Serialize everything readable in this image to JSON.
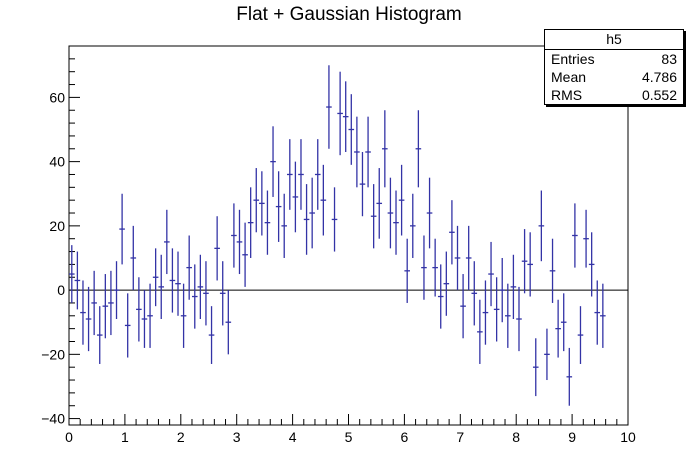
{
  "chart_data": {
    "type": "histogram",
    "title": "Flat + Gaussian Histogram",
    "xlim": [
      0,
      10
    ],
    "ylim": [
      -42,
      76
    ],
    "x_ticks": [
      0,
      1,
      2,
      3,
      4,
      5,
      6,
      7,
      8,
      9,
      10
    ],
    "y_ticks": [
      -40,
      -20,
      0,
      20,
      40,
      60
    ],
    "bin_width": 0.1,
    "values": [
      5,
      3,
      -7,
      -9,
      -4,
      -14,
      -5,
      -4,
      0,
      19,
      -11,
      10,
      -6,
      -9,
      -8,
      4,
      1,
      15,
      3,
      2,
      -8,
      7,
      -2,
      1,
      -1,
      -14,
      13,
      -1,
      -10,
      17,
      15,
      11,
      21,
      28,
      27,
      21,
      40,
      26,
      20,
      36,
      29,
      36,
      22,
      24,
      36,
      28,
      57,
      22,
      55,
      54,
      50,
      43,
      33,
      43,
      23,
      27,
      44,
      24,
      21,
      28,
      6,
      20,
      44,
      7,
      24,
      7,
      -2,
      2,
      18,
      10,
      -5,
      10,
      -1,
      -13,
      -7,
      5,
      -6,
      0,
      -8,
      1,
      -9,
      9,
      8,
      -24,
      20,
      -20,
      6,
      -12,
      -10,
      -27,
      17,
      -14,
      16,
      8,
      -7,
      -8
    ],
    "errors": [
      9,
      9,
      10,
      10,
      10,
      9,
      10,
      10,
      9,
      11,
      10,
      10,
      10,
      9,
      10,
      9,
      10,
      10,
      10,
      10,
      10,
      10,
      10,
      10,
      10,
      9,
      10,
      10,
      10,
      10,
      10,
      10,
      11,
      10,
      10,
      10,
      11,
      11,
      10,
      11,
      11,
      11,
      11,
      11,
      11,
      11,
      13,
      10,
      13,
      11,
      11,
      11,
      10,
      11,
      10,
      11,
      12,
      11,
      10,
      11,
      10,
      10,
      12,
      10,
      11,
      9,
      10,
      10,
      10,
      10,
      10,
      10,
      10,
      10,
      10,
      10,
      10,
      10,
      10,
      10,
      10,
      10,
      10,
      9,
      11,
      8,
      10,
      9,
      9,
      9,
      10,
      9,
      9,
      10,
      10,
      10
    ],
    "color": "#3333a6",
    "stats": {
      "name": "h5",
      "entries_label": "Entries",
      "entries": "83",
      "mean_label": "Mean",
      "mean": "4.786",
      "rms_label": "RMS",
      "rms": "0.552"
    }
  }
}
